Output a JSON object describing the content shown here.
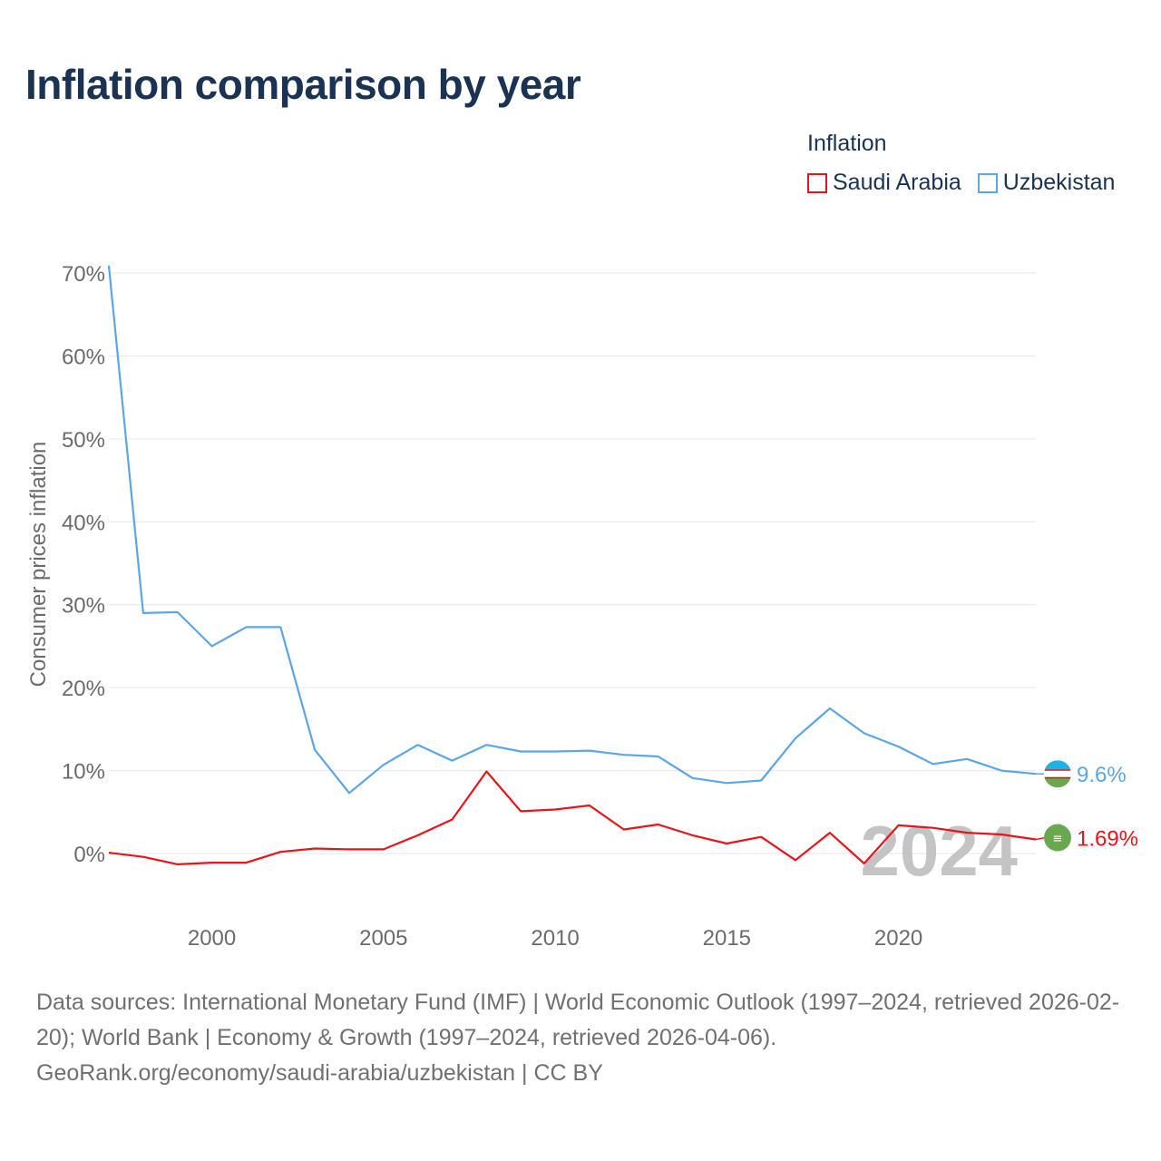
{
  "title": "Inflation comparison by year",
  "legend": {
    "title": "Inflation",
    "items": [
      {
        "label": "Saudi Arabia",
        "color": "#e8141a"
      },
      {
        "label": "Uzbekistan",
        "color": "#5aa6e6"
      }
    ]
  },
  "chart_data": {
    "type": "line",
    "ylabel": "Consumer prices inflation",
    "xlabel": "",
    "xlim": [
      1997,
      2024
    ],
    "ylim": [
      -7,
      71
    ],
    "x_ticks": [
      2000,
      2005,
      2010,
      2015,
      2020
    ],
    "y_ticks": [
      0,
      10,
      20,
      30,
      40,
      50,
      60,
      70
    ],
    "y_tick_labels": [
      "0%",
      "10%",
      "20%",
      "30%",
      "40%",
      "50%",
      "60%",
      "70%"
    ],
    "grid": true,
    "year_watermark": "2024",
    "x": [
      1997,
      1998,
      1999,
      2000,
      2001,
      2002,
      2003,
      2004,
      2005,
      2006,
      2007,
      2008,
      2009,
      2010,
      2011,
      2012,
      2013,
      2014,
      2015,
      2016,
      2017,
      2018,
      2019,
      2020,
      2021,
      2022,
      2023,
      2024
    ],
    "series": [
      {
        "name": "Saudi Arabia",
        "color": "#e8141a",
        "end_label": "1.69%",
        "values": [
          0.1,
          -0.4,
          -1.3,
          -1.1,
          -1.1,
          0.2,
          0.6,
          0.5,
          0.5,
          2.2,
          4.1,
          9.9,
          5.1,
          5.3,
          5.8,
          2.9,
          3.5,
          2.2,
          1.2,
          2.0,
          -0.8,
          2.5,
          -1.2,
          3.4,
          3.1,
          2.5,
          2.3,
          1.69
        ]
      },
      {
        "name": "Uzbekistan",
        "color": "#5aa6e6",
        "end_label": "9.6%",
        "values": [
          70.9,
          29.0,
          29.1,
          25.0,
          27.3,
          27.3,
          12.5,
          7.3,
          10.7,
          13.1,
          11.2,
          13.1,
          12.3,
          12.3,
          12.4,
          11.9,
          11.7,
          9.1,
          8.5,
          8.8,
          13.9,
          17.5,
          14.5,
          12.9,
          10.8,
          11.4,
          10.0,
          9.6
        ]
      }
    ]
  },
  "source": {
    "line1": "Data sources: International Monetary Fund (IMF) | World Economic Outlook (1997–2024, retrieved 2026-02-20); World Bank | Economy & Growth (1997–2024, retrieved 2026-04-06).",
    "line2": "GeoRank.org/economy/saudi-arabia/uzbekistan | CC BY"
  }
}
